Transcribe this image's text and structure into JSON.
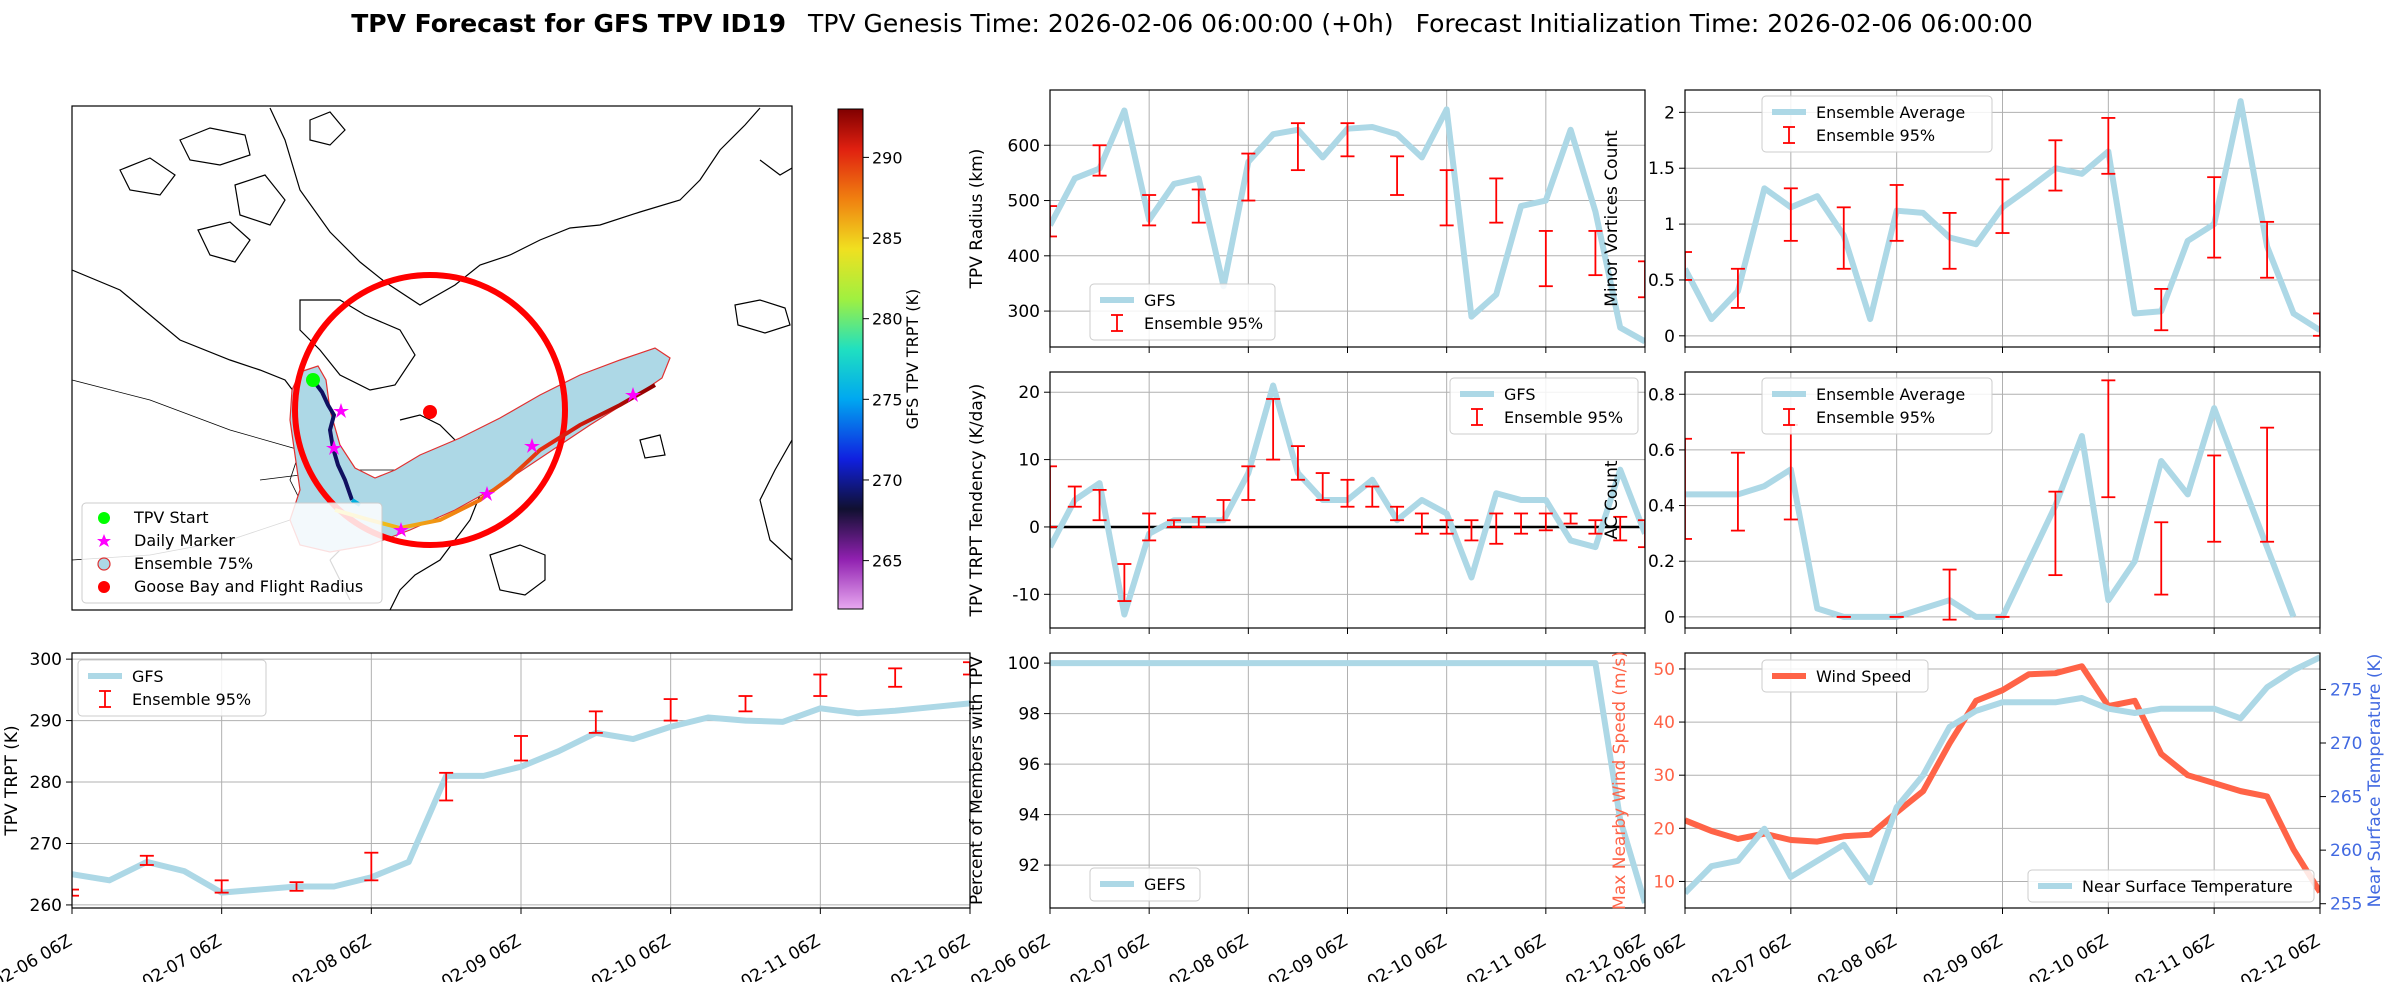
{
  "title": {
    "bold": "TPV Forecast for GFS TPV ID19",
    "genesis": "TPV Genesis Time: 2026-02-06 06:00:00 (+0h)",
    "init": "Forecast Initialization Time: 2026-02-06 06:00:00"
  },
  "colors": {
    "gfs_line": "#add8e6",
    "errbar": "#ff0000",
    "wind": "#ff6347",
    "temp_axis": "#4169e1",
    "grid": "#b0b0b0"
  },
  "map": {
    "legend": [
      "TPV Start",
      "Daily Marker",
      "Ensemble 75%",
      "Goose Bay and Flight Radius"
    ],
    "colorbar": {
      "label": "GFS TPV TRPT (K)",
      "ticks": [
        265,
        270,
        275,
        280,
        285,
        290
      ],
      "min": 262,
      "max": 293
    }
  },
  "time_ticks": [
    "02-06 06Z",
    "02-07 06Z",
    "02-08 06Z",
    "02-09 06Z",
    "02-10 06Z",
    "02-11 06Z",
    "02-12 06Z"
  ],
  "chart_data": [
    {
      "type": "line",
      "name": "radius",
      "title": "",
      "xlabel": "",
      "ylabel": "TPV Radius (km)",
      "ylim": [
        235,
        700
      ],
      "yticks": [
        300,
        400,
        500,
        600
      ],
      "series": [
        {
          "name": "GFS",
          "values": [
            455,
            540,
            558,
            663,
            465,
            530,
            540,
            345,
            570,
            620,
            628,
            578,
            630,
            633,
            620,
            578,
            665,
            290,
            330,
            490,
            500,
            628,
            480,
            270,
            245
          ]
        }
      ],
      "errbars": {
        "name": "Ensemble 95%",
        "items": [
          {
            "i": 0,
            "lo": 435,
            "hi": 490
          },
          {
            "i": 2,
            "lo": 545,
            "hi": 600
          },
          {
            "i": 4,
            "lo": 455,
            "hi": 510
          },
          {
            "i": 6,
            "lo": 460,
            "hi": 520
          },
          {
            "i": 8,
            "lo": 500,
            "hi": 585
          },
          {
            "i": 10,
            "lo": 555,
            "hi": 640
          },
          {
            "i": 12,
            "lo": 580,
            "hi": 640
          },
          {
            "i": 14,
            "lo": 510,
            "hi": 580
          },
          {
            "i": 16,
            "lo": 455,
            "hi": 555
          },
          {
            "i": 18,
            "lo": 460,
            "hi": 540
          },
          {
            "i": 20,
            "lo": 345,
            "hi": 445
          },
          {
            "i": 22,
            "lo": 365,
            "hi": 445
          },
          {
            "i": 24,
            "lo": 325,
            "hi": 390
          }
        ]
      }
    },
    {
      "type": "line",
      "name": "minor",
      "xlabel": "",
      "ylabel": "Minor Vortices Count",
      "ylim": [
        -0.1,
        2.2
      ],
      "yticks": [
        0.0,
        0.5,
        1.0,
        1.5,
        2.0
      ],
      "series": [
        {
          "name": "Ensemble Average",
          "values": [
            0.6,
            0.15,
            0.4,
            1.32,
            1.15,
            1.25,
            0.9,
            0.15,
            1.12,
            1.1,
            0.88,
            0.82,
            1.15,
            1.32,
            1.5,
            1.45,
            1.65,
            0.2,
            0.22,
            0.85,
            1.0,
            2.1,
            0.8,
            0.2,
            0.05
          ]
        }
      ],
      "errbars": {
        "name": "Ensemble 95%",
        "items": [
          {
            "i": 0,
            "lo": 0.5,
            "hi": 0.75
          },
          {
            "i": 2,
            "lo": 0.25,
            "hi": 0.6
          },
          {
            "i": 4,
            "lo": 0.85,
            "hi": 1.32
          },
          {
            "i": 6,
            "lo": 0.6,
            "hi": 1.15
          },
          {
            "i": 8,
            "lo": 0.85,
            "hi": 1.35
          },
          {
            "i": 10,
            "lo": 0.6,
            "hi": 1.1
          },
          {
            "i": 12,
            "lo": 0.92,
            "hi": 1.4
          },
          {
            "i": 14,
            "lo": 1.3,
            "hi": 1.75
          },
          {
            "i": 16,
            "lo": 1.45,
            "hi": 1.95
          },
          {
            "i": 18,
            "lo": 0.05,
            "hi": 0.42
          },
          {
            "i": 20,
            "lo": 0.7,
            "hi": 1.42
          },
          {
            "i": 22,
            "lo": 0.52,
            "hi": 1.02
          },
          {
            "i": 24,
            "lo": 0.0,
            "hi": 0.2
          }
        ]
      }
    },
    {
      "type": "line",
      "name": "tendency",
      "xlabel": "",
      "ylabel": "TPV TRPT Tendency (K/day)",
      "ylim": [
        -15,
        23
      ],
      "yticks": [
        -10,
        0,
        10,
        20
      ],
      "zero_line": true,
      "series": [
        {
          "name": "GFS",
          "values": [
            -3,
            4,
            6.5,
            -13,
            -1,
            1,
            1,
            1,
            8,
            21,
            8,
            4,
            4,
            7,
            1,
            4,
            2,
            -7.5,
            5,
            4,
            4,
            -2,
            -3,
            8.5,
            -1
          ]
        }
      ],
      "errbars": {
        "name": "Ensemble 95%",
        "items": [
          {
            "i": 0,
            "lo": 0,
            "hi": 9
          },
          {
            "i": 1,
            "lo": 3,
            "hi": 6
          },
          {
            "i": 2,
            "lo": 1,
            "hi": 5.5
          },
          {
            "i": 3,
            "lo": -11,
            "hi": -5.5
          },
          {
            "i": 4,
            "lo": -2,
            "hi": 2
          },
          {
            "i": 5,
            "lo": 0,
            "hi": 1
          },
          {
            "i": 6,
            "lo": 0,
            "hi": 1.5
          },
          {
            "i": 7,
            "lo": 1,
            "hi": 4
          },
          {
            "i": 8,
            "lo": 4,
            "hi": 9
          },
          {
            "i": 9,
            "lo": 10,
            "hi": 19
          },
          {
            "i": 10,
            "lo": 7,
            "hi": 12
          },
          {
            "i": 11,
            "lo": 4,
            "hi": 8
          },
          {
            "i": 12,
            "lo": 3,
            "hi": 7
          },
          {
            "i": 13,
            "lo": 3,
            "hi": 6
          },
          {
            "i": 14,
            "lo": 1,
            "hi": 3
          },
          {
            "i": 15,
            "lo": -1,
            "hi": 2
          },
          {
            "i": 16,
            "lo": -1,
            "hi": 1
          },
          {
            "i": 17,
            "lo": -2,
            "hi": 1
          },
          {
            "i": 18,
            "lo": -2.5,
            "hi": 2
          },
          {
            "i": 19,
            "lo": -1,
            "hi": 2
          },
          {
            "i": 20,
            "lo": -0.5,
            "hi": 2
          },
          {
            "i": 21,
            "lo": 0.5,
            "hi": 2
          },
          {
            "i": 22,
            "lo": -1,
            "hi": 1
          },
          {
            "i": 23,
            "lo": -2,
            "hi": 1.5
          },
          {
            "i": 24,
            "lo": -3,
            "hi": 1
          }
        ]
      }
    },
    {
      "type": "line",
      "name": "ac",
      "xlabel": "",
      "ylabel": "AC Count",
      "ylim": [
        -0.04,
        0.88
      ],
      "yticks": [
        0.0,
        0.2,
        0.4,
        0.6,
        0.8
      ],
      "series": [
        {
          "name": "Ensemble Average",
          "values": [
            0.44,
            0.44,
            0.44,
            0.47,
            0.53,
            0.03,
            0.0,
            0.0,
            0.0,
            0.03,
            0.06,
            0.0,
            0.0,
            0.2,
            0.4,
            0.65,
            0.06,
            0.2,
            0.56,
            0.44,
            0.75,
            0.5,
            0.25,
            0.0
          ]
        }
      ],
      "errbars": {
        "name": "Ensemble 95%",
        "items": [
          {
            "i": 0,
            "lo": 0.28,
            "hi": 0.64
          },
          {
            "i": 2,
            "lo": 0.31,
            "hi": 0.59
          },
          {
            "i": 4,
            "lo": 0.35,
            "hi": 0.69
          },
          {
            "i": 6,
            "lo": 0.0,
            "hi": 0.0
          },
          {
            "i": 8,
            "lo": 0.0,
            "hi": 0.0
          },
          {
            "i": 10,
            "lo": -0.01,
            "hi": 0.17
          },
          {
            "i": 12,
            "lo": 0.0,
            "hi": 0.0
          },
          {
            "i": 14,
            "lo": 0.15,
            "hi": 0.45
          },
          {
            "i": 16,
            "lo": 0.43,
            "hi": 0.85
          },
          {
            "i": 18,
            "lo": 0.08,
            "hi": 0.34
          },
          {
            "i": 20,
            "lo": 0.27,
            "hi": 0.58
          },
          {
            "i": 22,
            "lo": 0.27,
            "hi": 0.68
          }
        ]
      }
    },
    {
      "type": "line",
      "name": "trpt",
      "xlabel": "",
      "ylabel": "TPV TRPT (K)",
      "ylim": [
        259.5,
        301
      ],
      "yticks": [
        260,
        270,
        280,
        290,
        300
      ],
      "series": [
        {
          "name": "GFS",
          "values": [
            265,
            264,
            267,
            265.5,
            262,
            262.5,
            263,
            263,
            264.5,
            267,
            281,
            281,
            282.5,
            285,
            288,
            287,
            289,
            290.5,
            290,
            289.8,
            292,
            291.2,
            291.6,
            292.2,
            292.8
          ]
        }
      ],
      "errbars": {
        "name": "Ensemble 95%",
        "items": [
          {
            "i": 0,
            "lo": 261.5,
            "hi": 262.5
          },
          {
            "i": 2,
            "lo": 266.5,
            "hi": 268
          },
          {
            "i": 4,
            "lo": 262,
            "hi": 264
          },
          {
            "i": 6,
            "lo": 262.3,
            "hi": 263.7
          },
          {
            "i": 8,
            "lo": 264,
            "hi": 268.5
          },
          {
            "i": 10,
            "lo": 277,
            "hi": 281.5
          },
          {
            "i": 12,
            "lo": 283.5,
            "hi": 287.5
          },
          {
            "i": 14,
            "lo": 288,
            "hi": 291.5
          },
          {
            "i": 16,
            "lo": 290,
            "hi": 293.5
          },
          {
            "i": 18,
            "lo": 291.5,
            "hi": 294
          },
          {
            "i": 20,
            "lo": 294,
            "hi": 297.5
          },
          {
            "i": 22,
            "lo": 295.5,
            "hi": 298.5
          },
          {
            "i": 24,
            "lo": 297.5,
            "hi": 299.5
          }
        ]
      }
    },
    {
      "type": "line",
      "name": "members",
      "xlabel": "",
      "ylabel": "Percent of Members with TPV",
      "ylim": [
        90.3,
        100.4
      ],
      "yticks": [
        92,
        94,
        96,
        98,
        100
      ],
      "series": [
        {
          "name": "GEFS",
          "values": [
            100,
            100,
            100,
            100,
            100,
            100,
            100,
            100,
            100,
            100,
            100,
            100,
            100,
            100,
            100,
            100,
            100,
            100,
            100,
            100,
            100,
            100,
            100,
            93.8,
            90.5
          ]
        }
      ]
    },
    {
      "type": "line",
      "name": "wind",
      "xlabel": "",
      "ylabel": "Max Nearby Wind Speed (m/s)",
      "y2label": "Near Surface Temperature (K)",
      "ylim": [
        5,
        53
      ],
      "yticks": [
        10,
        20,
        30,
        40,
        50
      ],
      "y2lim": [
        254.6,
        278.4
      ],
      "y2ticks": [
        255,
        260,
        265,
        270,
        275
      ],
      "series": [
        {
          "name": "Wind Speed",
          "axis": "left",
          "values": [
            21.5,
            19.5,
            18,
            19,
            17.8,
            17.5,
            18.5,
            18.8,
            23,
            27,
            36,
            44,
            46,
            49,
            49.2,
            50.5,
            43,
            44,
            34,
            30,
            28.5,
            27,
            26,
            16,
            8
          ]
        },
        {
          "name": "Near Surface Temperature",
          "axis": "right",
          "values": [
            256,
            258.5,
            259,
            262,
            257.5,
            259,
            260.5,
            257,
            264,
            267,
            271.5,
            273,
            273.8,
            273.8,
            273.8,
            274.2,
            273.2,
            272.8,
            273.2,
            273.2,
            273.2,
            272.3,
            275.2,
            276.8,
            278
          ]
        }
      ]
    }
  ]
}
